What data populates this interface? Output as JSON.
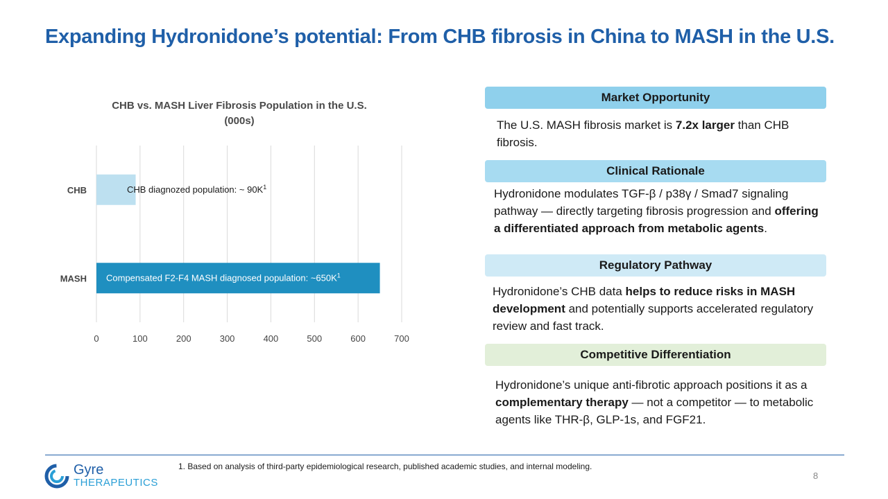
{
  "title": "Expanding Hydronidone’s potential: From CHB fibrosis in China to MASH in the U.S.",
  "chart_data": {
    "type": "bar",
    "orientation": "horizontal",
    "title_line1": "CHB vs. MASH Liver Fibrosis Population in the U.S.",
    "title_line2": "(000s)",
    "categories": [
      "CHB",
      "MASH"
    ],
    "values": [
      90,
      650
    ],
    "data_labels": [
      "CHB diagnozed population: ~ 90K",
      "Compensated F2-F4 MASH diagnosed population: ~650K"
    ],
    "data_label_superscript": "1",
    "bar_colors": [
      "#bde0f0",
      "#1f8fc0"
    ],
    "xlim": [
      0,
      700
    ],
    "xticks": [
      "0",
      "100",
      "200",
      "300",
      "400",
      "500",
      "600",
      "700"
    ],
    "grid": true
  },
  "sections": {
    "market": {
      "header": "Market Opportunity",
      "color": "#8fd0ec",
      "body_pre": "The U.S. MASH fibrosis market is ",
      "body_bold": "7.2x larger",
      "body_post": " than CHB fibrosis."
    },
    "clinical": {
      "header": "Clinical Rationale",
      "color": "#a7dbf1",
      "body_pre": "Hydronidone modulates TGF-β / p38γ / Smad7 signaling pathway — directly targeting fibrosis progression and ",
      "body_bold": "offering a differentiated approach from metabolic agents",
      "body_post": "."
    },
    "regulatory": {
      "header": "Regulatory Pathway",
      "color": "#cfeaf6",
      "body_pre": "Hydronidone’s CHB data ",
      "body_bold": "helps to reduce risks in MASH development",
      "body_post": " and potentially supports accelerated regulatory review and fast track."
    },
    "competitive": {
      "header": "Competitive Differentiation",
      "color": "#e2efd9",
      "body_pre": "Hydronidone’s unique anti-fibrotic approach positions it as a ",
      "body_bold": "complementary therapy",
      "body_post": " — not a competitor — to metabolic agents like THR-β, GLP-1s, and FGF21."
    }
  },
  "footnote": "1. Based on analysis of third-party epidemiological research, published academic studies, and internal modeling.",
  "page_number": "8",
  "logo": {
    "name": "Gyre",
    "sub": "THERAPEUTICS",
    "icon": "gyre-swirl-icon"
  }
}
